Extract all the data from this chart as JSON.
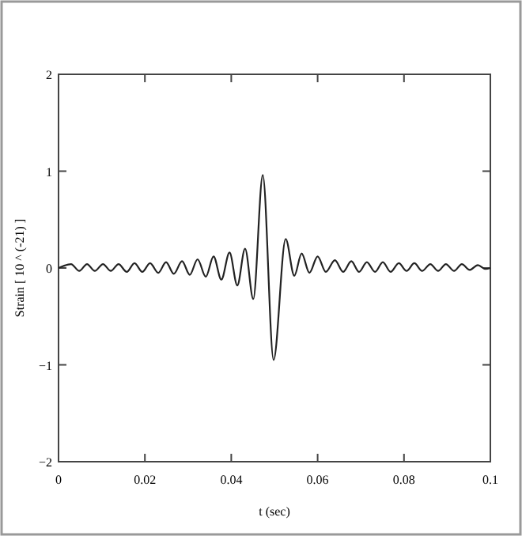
{
  "chart_data": {
    "type": "line",
    "xlabel": "t (sec)",
    "ylabel": "Strain [ 10 ^ (-21) ]",
    "xlim": [
      0,
      0.1
    ],
    "ylim": [
      -2,
      2
    ],
    "xticks": [
      0,
      0.02,
      0.04,
      0.06,
      0.08,
      0.1
    ],
    "yticks": [
      {
        "value": -2,
        "label": "−2"
      },
      {
        "value": -1,
        "label": "−1"
      },
      0,
      1,
      2
    ],
    "grid": false,
    "marker": "none",
    "line_style": "solid",
    "series": [
      {
        "color": "#222222",
        "x": [
          0,
          0.0011,
          0.0029,
          0.0048,
          0.0066,
          0.0084,
          0.0103,
          0.0121,
          0.0139,
          0.0158,
          0.0176,
          0.0194,
          0.0212,
          0.0231,
          0.0249,
          0.0267,
          0.0286,
          0.0304,
          0.0322,
          0.0341,
          0.0359,
          0.0377,
          0.0396,
          0.0414,
          0.0432,
          0.0451,
          0.0473,
          0.0498,
          0.0526,
          0.0546,
          0.0563,
          0.0581,
          0.06,
          0.0619,
          0.064,
          0.0659,
          0.0678,
          0.0696,
          0.0714,
          0.0733,
          0.0751,
          0.0769,
          0.0788,
          0.0806,
          0.0824,
          0.0842,
          0.0861,
          0.0879,
          0.0897,
          0.0916,
          0.0934,
          0.0952,
          0.0971,
          0.0989,
          0.1
        ],
        "values": [
          0,
          0.02,
          0.04,
          -0.03,
          0.04,
          -0.03,
          0.04,
          -0.03,
          0.04,
          -0.04,
          0.05,
          -0.04,
          0.05,
          -0.05,
          0.06,
          -0.06,
          0.07,
          -0.07,
          0.09,
          -0.09,
          0.12,
          -0.12,
          0.16,
          -0.18,
          0.2,
          -0.32,
          0.96,
          -0.95,
          0.3,
          -0.08,
          0.15,
          -0.05,
          0.12,
          -0.04,
          0.08,
          -0.04,
          0.07,
          -0.04,
          0.06,
          -0.04,
          0.06,
          -0.04,
          0.05,
          -0.03,
          0.05,
          -0.03,
          0.04,
          -0.03,
          0.04,
          -0.03,
          0.04,
          -0.02,
          0.03,
          -0.01,
          0
        ]
      }
    ]
  }
}
